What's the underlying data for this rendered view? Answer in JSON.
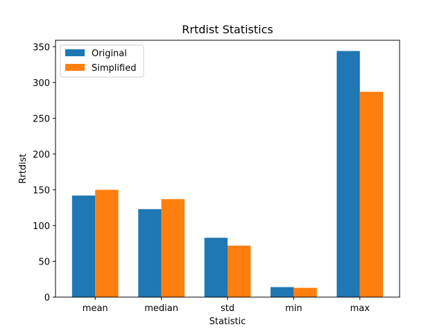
{
  "chart_data": {
    "type": "bar",
    "title": "Rrtdist Statistics",
    "xlabel": "Statistic",
    "ylabel": "Rrtdist",
    "categories": [
      "mean",
      "median",
      "std",
      "min",
      "max"
    ],
    "series": [
      {
        "name": "Original",
        "values": [
          142,
          123,
          83,
          14,
          344
        ],
        "color": "#1f77b4"
      },
      {
        "name": "Simplified",
        "values": [
          150,
          137,
          72,
          13,
          287
        ],
        "color": "#ff7f0e"
      }
    ],
    "ylim": [
      0,
      359
    ],
    "yticks": [
      0,
      50,
      100,
      150,
      200,
      250,
      300,
      350
    ],
    "grid": false,
    "legend_position": "upper-left"
  }
}
